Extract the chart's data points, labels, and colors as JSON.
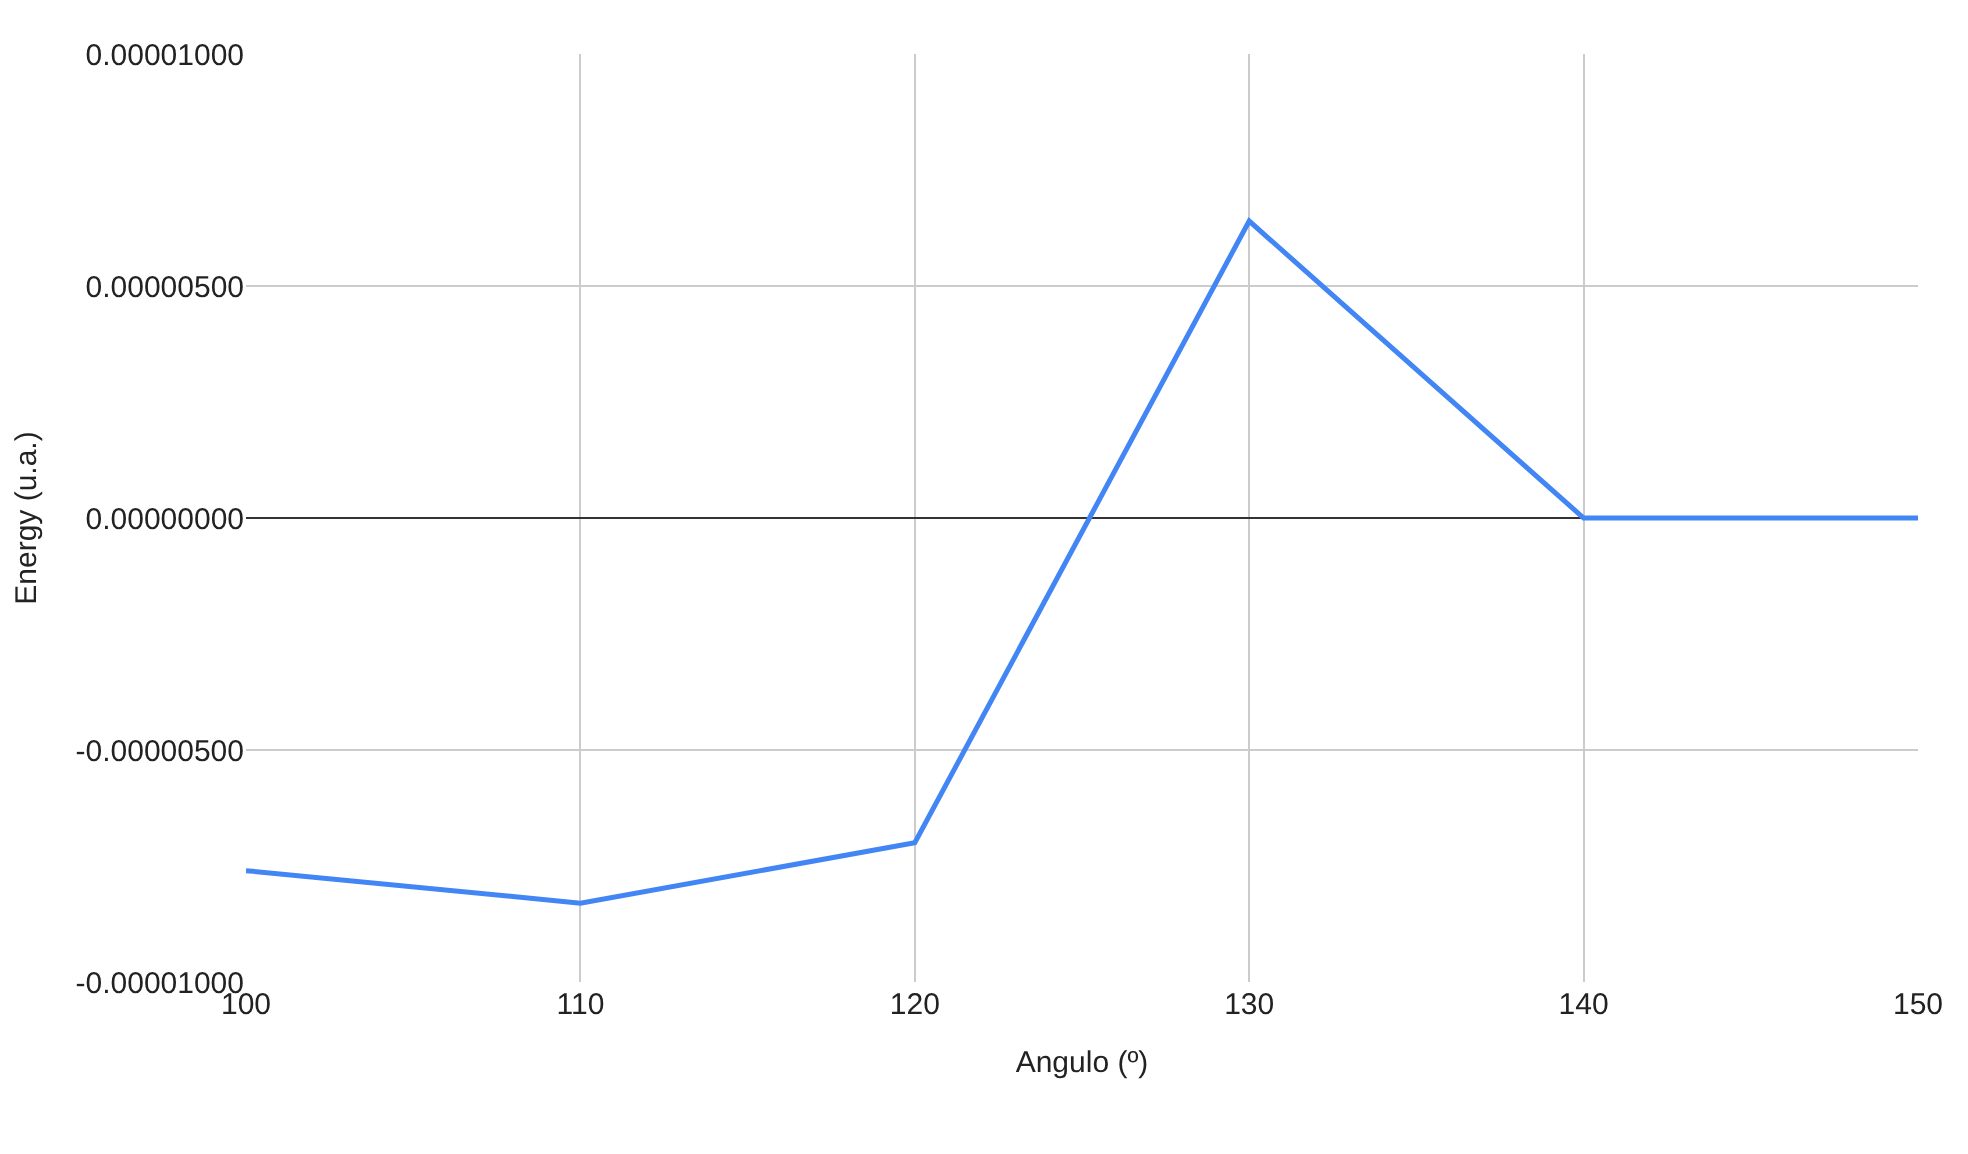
{
  "chart_data": {
    "type": "line",
    "xlabel": "Angulo (º)",
    "ylabel": "Energy (u.a.)",
    "x": [
      100,
      110,
      120,
      130,
      140,
      150
    ],
    "series": [
      {
        "color": "#4285f4",
        "values": [
          -7.6e-06,
          -8.3e-06,
          -7e-06,
          6.4e-06,
          0.0,
          0.0
        ]
      }
    ],
    "xlim": [
      100,
      150
    ],
    "xticks": [
      100,
      110,
      120,
      130,
      140,
      150
    ],
    "ylim": [
      -1e-05,
      1e-05
    ],
    "yticks": [
      {
        "value": -1e-05,
        "label": "-0.00001000"
      },
      {
        "value": -5e-06,
        "label": "-0.00000500"
      },
      {
        "value": 0,
        "label": "0.00000000"
      },
      {
        "value": 5e-06,
        "label": "0.00000500"
      },
      {
        "value": 1e-05,
        "label": "0.00001000"
      }
    ],
    "grid": true,
    "legend": false,
    "marker": "none",
    "line_style": "solid"
  }
}
